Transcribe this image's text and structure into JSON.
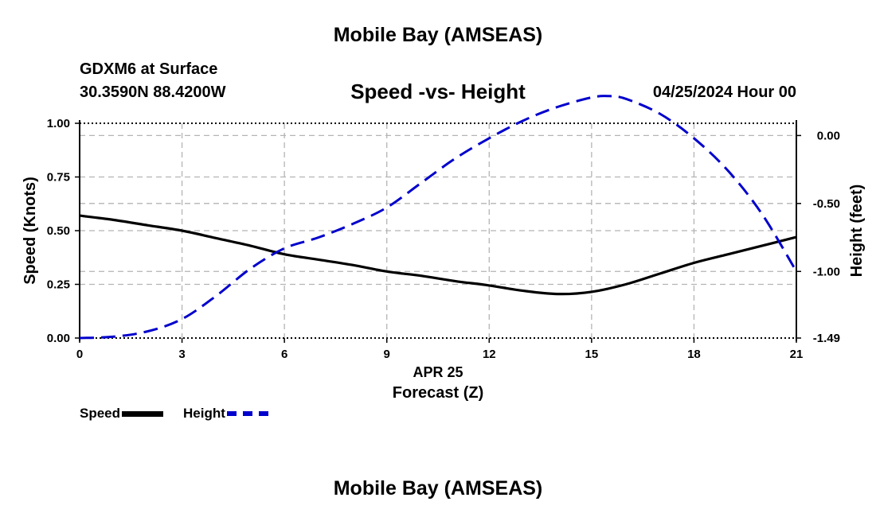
{
  "header": {
    "title": "Mobile Bay (AMSEAS)",
    "station": "GDXM6 at Surface",
    "coords": "30.3590N  88.4200W",
    "subtitle": "Speed -vs- Height",
    "datetime": "04/25/2024 Hour 00"
  },
  "footer": {
    "title": "Mobile Bay (AMSEAS)"
  },
  "legend": {
    "speed": "Speed",
    "height": "Height"
  },
  "colors": {
    "speed": "#000000",
    "height": "#0000cc",
    "grid": "#b4b4b4"
  },
  "chart_data": {
    "type": "line",
    "title": "Speed -vs- Height",
    "xlabel": "Forecast (Z)",
    "xsublabel": "APR 25",
    "ylabel": "Speed (Knots)",
    "y2label": "Height (feet)",
    "xlim": [
      0,
      21
    ],
    "ylim": [
      0,
      1
    ],
    "y2lim": [
      -1.49,
      0.09
    ],
    "xticks": [
      0,
      3,
      6,
      9,
      12,
      15,
      18,
      21
    ],
    "yticks": [
      "0.00",
      "0.25",
      "0.50",
      "0.75",
      "1.00"
    ],
    "y2ticks": [
      "0.00",
      "-0.50",
      "-1.00",
      "-1.49"
    ],
    "grid": true,
    "series": [
      {
        "name": "Speed",
        "axis": "left",
        "style": "solid",
        "x": [
          0,
          1,
          2,
          3,
          4,
          5,
          6,
          7,
          8,
          9,
          10,
          11,
          12,
          13,
          14,
          15,
          16,
          17,
          18,
          19,
          20,
          21
        ],
        "values": [
          0.57,
          0.55,
          0.525,
          0.5,
          0.465,
          0.43,
          0.39,
          0.365,
          0.34,
          0.31,
          0.29,
          0.265,
          0.245,
          0.22,
          0.205,
          0.215,
          0.25,
          0.3,
          0.35,
          0.39,
          0.43,
          0.47
        ]
      },
      {
        "name": "Height",
        "axis": "right",
        "style": "dashed",
        "x": [
          0,
          1,
          2,
          3,
          4,
          5,
          6,
          7,
          8,
          9,
          10,
          11,
          12,
          13,
          14,
          15,
          15.5,
          16,
          17,
          18,
          19,
          20,
          21
        ],
        "values": [
          -1.49,
          -1.48,
          -1.44,
          -1.35,
          -1.18,
          -0.98,
          -0.83,
          -0.75,
          -0.65,
          -0.53,
          -0.35,
          -0.17,
          -0.02,
          0.11,
          0.21,
          0.28,
          0.29,
          0.27,
          0.16,
          -0.02,
          -0.26,
          -0.58,
          -1.0
        ]
      }
    ]
  }
}
